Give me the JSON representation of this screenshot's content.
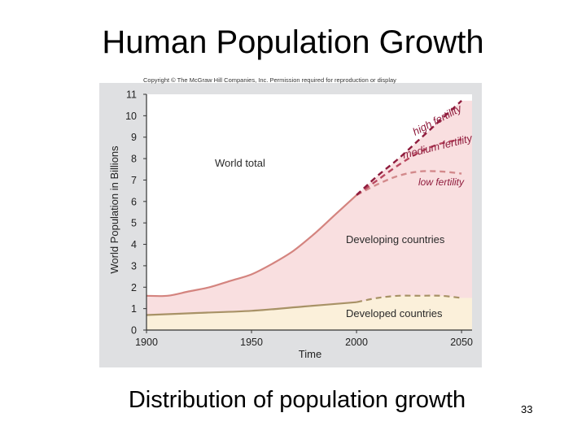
{
  "slide": {
    "title": "Human Population Growth",
    "caption": "Distribution of population growth",
    "page_number": "33"
  },
  "chart_data": {
    "type": "area",
    "copyright": "Copyright © The McGraw Hill Companies, Inc. Permission required for reproduction or display",
    "xlabel": "Time",
    "ylabel": "World Population in Billions",
    "xlim": [
      1900,
      2055
    ],
    "ylim": [
      0,
      11
    ],
    "x_ticks": [
      1900,
      1950,
      2000,
      2050
    ],
    "y_ticks": [
      0,
      1,
      2,
      3,
      4,
      5,
      6,
      7,
      8,
      9,
      10,
      11
    ],
    "grid": false,
    "series": [
      {
        "name": "World total",
        "x": [
          1900,
          1910,
          1920,
          1930,
          1940,
          1950,
          1960,
          1970,
          1980,
          1990,
          2000
        ],
        "values": [
          1.6,
          1.6,
          1.8,
          2.0,
          2.3,
          2.6,
          3.1,
          3.7,
          4.5,
          5.4,
          6.3
        ]
      },
      {
        "name": "Developed countries",
        "x": [
          1900,
          1925,
          1950,
          1975,
          2000
        ],
        "values": [
          0.7,
          0.8,
          0.9,
          1.1,
          1.3
        ]
      },
      {
        "name": "Developed countries (projection)",
        "x": [
          2000,
          2010,
          2020,
          2030,
          2040,
          2050
        ],
        "values": [
          1.3,
          1.5,
          1.6,
          1.6,
          1.6,
          1.5
        ]
      },
      {
        "name": "high fertility",
        "x": [
          2000,
          2010,
          2020,
          2030,
          2040,
          2050
        ],
        "values": [
          6.3,
          7.2,
          8.0,
          8.9,
          9.8,
          10.7
        ]
      },
      {
        "name": "medium fertility",
        "x": [
          2000,
          2010,
          2020,
          2030,
          2040,
          2050
        ],
        "values": [
          6.3,
          7.0,
          7.7,
          8.3,
          8.7,
          8.9
        ]
      },
      {
        "name": "low fertility",
        "x": [
          2000,
          2010,
          2020,
          2030,
          2040,
          2050
        ],
        "values": [
          6.3,
          6.8,
          7.2,
          7.4,
          7.4,
          7.3
        ]
      }
    ],
    "labels": {
      "world_total": "World total",
      "developing": "Developing countries",
      "developed": "Developed countries",
      "high": "high fertility",
      "medium": "medium fertility",
      "low": "low fertility"
    },
    "colors": {
      "panel": "#dfe0e2",
      "plot_bg": "#ffffff",
      "developing_fill": "#f9dfe0",
      "developed_fill": "#fbf0da",
      "world_line": "#d4847f",
      "developed_line": "#a89266",
      "developed_projection": "#a89266",
      "high": "#8f1b3c",
      "medium": "#b9475f",
      "low": "#d38a8c",
      "label_text": "#2a2a2a"
    }
  }
}
